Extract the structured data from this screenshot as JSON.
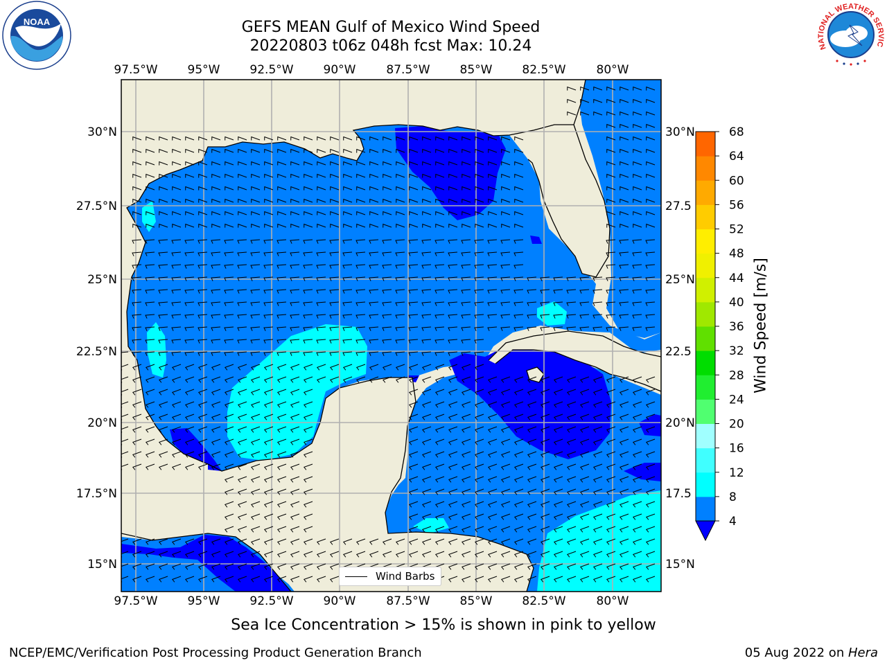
{
  "title": {
    "line1": "GEFS MEAN Gulf of Mexico Wind Speed",
    "line2": "20220803 t06z 048h fcst   Max: 10.24"
  },
  "axes": {
    "lon_labels": [
      "97.5°W",
      "95°W",
      "92.5°W",
      "90°W",
      "87.5°W",
      "85°W",
      "82.5°W",
      "80°W"
    ],
    "lat_labels": [
      "30°N",
      "27.5°N",
      "25°N",
      "22.5°N",
      "20°N",
      "17.5°N",
      "15°N"
    ],
    "right_lat_labels": [
      "30°N",
      "27.5",
      "25°N",
      "22.5",
      "20°N",
      "17.5",
      "15°N"
    ],
    "extent": {
      "lon_min": -98,
      "lon_max": -78.2,
      "lat_min": 14,
      "lat_max": 31.8
    }
  },
  "colorbar": {
    "title": "Wind Speed [m/s]",
    "ticks": [
      "4",
      "8",
      "12",
      "16",
      "20",
      "24",
      "28",
      "32",
      "36",
      "40",
      "44",
      "48",
      "52",
      "56",
      "60",
      "64",
      "68"
    ],
    "colors": [
      "#0080ff",
      "#00ffff",
      "#40ffff",
      "#a0ffff",
      "#50ff70",
      "#20ee30",
      "#00dd00",
      "#60e000",
      "#a0e800",
      "#d0f000",
      "#f0f000",
      "#ffee00",
      "#ffcc00",
      "#ffaa00",
      "#ff8800",
      "#ff6600",
      "#ff3300",
      "#ff0000"
    ],
    "extend_color": "#0000ff"
  },
  "legend": {
    "label": "Wind Barbs"
  },
  "subtitle": "Sea Ice Concentration > 15% is shown in pink to yellow",
  "footer": {
    "left": "NCEP/EMC/Verification Post Processing Product Generation Branch",
    "right_date": "05 Aug 2022 on ",
    "right_machine": "Hera"
  },
  "logos": {
    "noaa": "NOAA",
    "nws": "NATIONAL WEATHER SERVICE"
  },
  "colors": {
    "land": "#efedda",
    "sea_4_8": "#0080ff",
    "sea_8_12": "#00ffff",
    "sea_lt4": "#0000ff"
  }
}
